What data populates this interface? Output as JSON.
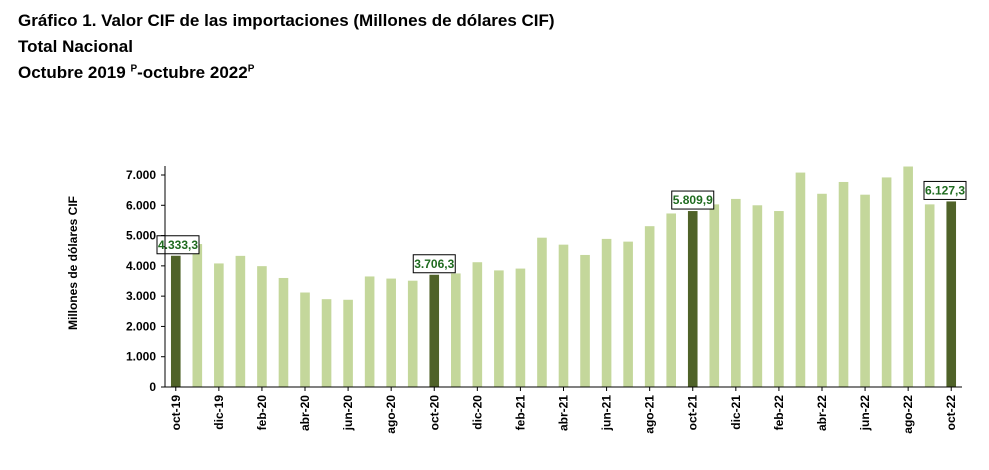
{
  "header": {
    "title": "Gráfico 1. Valor CIF de las importaciones (Millones de dólares CIF)",
    "subtitle": "Total Nacional",
    "period_start": "Octubre 2019",
    "period_mark_1": "P",
    "period_end": "-octubre 2022",
    "period_mark_2": "P"
  },
  "chart_data": {
    "type": "bar",
    "ylabel": "Millones de dólares CIF",
    "ylim": [
      0,
      7000
    ],
    "yticks": [
      "0",
      "1.000",
      "2.000",
      "3.000",
      "4.000",
      "5.000",
      "6.000",
      "7.000"
    ],
    "categories": [
      "oct-19",
      "nov-19",
      "dic-19",
      "ene-20",
      "feb-20",
      "mar-20",
      "abr-20",
      "may-20",
      "jun-20",
      "jul-20",
      "ago-20",
      "sep-20",
      "oct-20",
      "nov-20",
      "dic-20",
      "ene-21",
      "feb-21",
      "mar-21",
      "abr-21",
      "may-21",
      "jun-21",
      "jul-21",
      "ago-21",
      "sep-21",
      "oct-21",
      "nov-21",
      "dic-21",
      "ene-22",
      "feb-22",
      "mar-22",
      "abr-22",
      "may-22",
      "jun-22",
      "jul-22",
      "ago-22",
      "sep-22",
      "oct-22"
    ],
    "xtick_labels": [
      "oct-19",
      "",
      "dic-19",
      "",
      "feb-20",
      "",
      "abr-20",
      "",
      "jun-20",
      "",
      "ago-20",
      "",
      "oct-20",
      "",
      "dic-20",
      "",
      "feb-21",
      "",
      "abr-21",
      "",
      "jun-21",
      "",
      "ago-21",
      "",
      "oct-21",
      "",
      "dic-21",
      "",
      "feb-22",
      "",
      "abr-22",
      "",
      "jun-22",
      "",
      "ago-22",
      "",
      "oct-22"
    ],
    "values": [
      4333.3,
      4720,
      4080,
      4330,
      3990,
      3600,
      3120,
      2900,
      2880,
      3650,
      3580,
      3510,
      3706.3,
      3750,
      4120,
      3850,
      3910,
      4930,
      4700,
      4360,
      4890,
      4800,
      5310,
      5730,
      5809.9,
      6030,
      6210,
      6000,
      5810,
      7080,
      6380,
      6770,
      6350,
      6920,
      7280,
      6030,
      6127.3
    ],
    "highlight_indices": [
      0,
      12,
      24,
      36
    ],
    "data_labels": [
      {
        "index": 0,
        "text": "4.333,3"
      },
      {
        "index": 12,
        "text": "3.706,3"
      },
      {
        "index": 24,
        "text": "5.809,9"
      },
      {
        "index": 36,
        "text": "6.127,3"
      }
    ],
    "colors": {
      "bar": "#c4d79b",
      "highlight": "#4f6228",
      "label_text": "#1f6b1f",
      "axis": "#000000"
    },
    "grid": false,
    "legend": "none"
  }
}
